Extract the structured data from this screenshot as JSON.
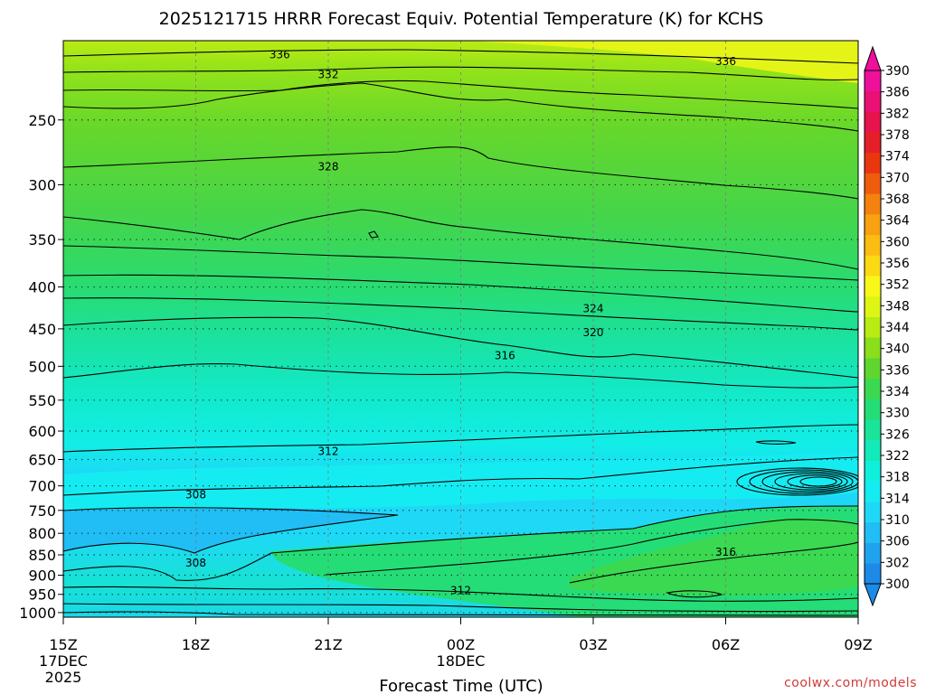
{
  "chart_data": {
    "type": "heatmap",
    "title": "2025121715 HRRR Forecast Equiv. Potential Temperature (K) for KCHS",
    "xlabel": "Forecast Time (UTC)",
    "ylabel": "",
    "x_ticks": [
      {
        "label": "15Z",
        "hour": 0,
        "sub": [
          "17DEC",
          "2025"
        ]
      },
      {
        "label": "18Z",
        "hour": 3,
        "sub": []
      },
      {
        "label": "21Z",
        "hour": 6,
        "sub": []
      },
      {
        "label": "00Z",
        "hour": 9,
        "sub": [
          "18DEC"
        ]
      },
      {
        "label": "03Z",
        "hour": 12,
        "sub": []
      },
      {
        "label": "06Z",
        "hour": 15,
        "sub": []
      },
      {
        "label": "09Z",
        "hour": 18,
        "sub": []
      }
    ],
    "xlim_hours": [
      0,
      18
    ],
    "y_ticks": [
      250,
      300,
      350,
      400,
      450,
      500,
      550,
      600,
      650,
      700,
      750,
      800,
      850,
      900,
      950,
      1000
    ],
    "ylim_hPa": [
      200,
      1013
    ],
    "y_scale": "log-pressure",
    "grid": "dotted",
    "colorbar": {
      "labels": [
        300,
        302,
        306,
        310,
        314,
        318,
        322,
        326,
        330,
        334,
        336,
        340,
        344,
        348,
        352,
        356,
        360,
        364,
        368,
        370,
        374,
        378,
        382,
        386,
        390
      ],
      "colors": [
        "#1c8ae6",
        "#1fa3ef",
        "#21bdf5",
        "#1fd8f7",
        "#15ecf2",
        "#0ff0dc",
        "#12eaba",
        "#19e49a",
        "#25dd76",
        "#3bd852",
        "#5ed62e",
        "#8ade1a",
        "#b7eb12",
        "#ddf514",
        "#f8f818",
        "#fcd915",
        "#fbbd12",
        "#f8a111",
        "#f5810f",
        "#ef5c0e",
        "#e9360f",
        "#e51e28",
        "#e7134c",
        "#ea1074",
        "#ee109b"
      ],
      "arrows": "both"
    },
    "contour_labels": [
      {
        "value": "336",
        "hour": 4.9,
        "p": 208
      },
      {
        "value": "336",
        "hour": 15.0,
        "p": 212
      },
      {
        "value": "332",
        "hour": 6.0,
        "p": 220
      },
      {
        "value": "328",
        "hour": 6.0,
        "p": 285
      },
      {
        "value": "324",
        "hour": 12.0,
        "p": 425
      },
      {
        "value": "320",
        "hour": 12.0,
        "p": 455
      },
      {
        "value": "316",
        "hour": 10.0,
        "p": 485
      },
      {
        "value": "312",
        "hour": 6.0,
        "p": 635
      },
      {
        "value": "308",
        "hour": 3.0,
        "p": 718
      },
      {
        "value": "308",
        "hour": 3.0,
        "p": 870
      },
      {
        "value": "316",
        "hour": 15.0,
        "p": 843
      },
      {
        "value": "312",
        "hour": 9.0,
        "p": 940
      }
    ],
    "credit": "coolwx.com/models"
  }
}
